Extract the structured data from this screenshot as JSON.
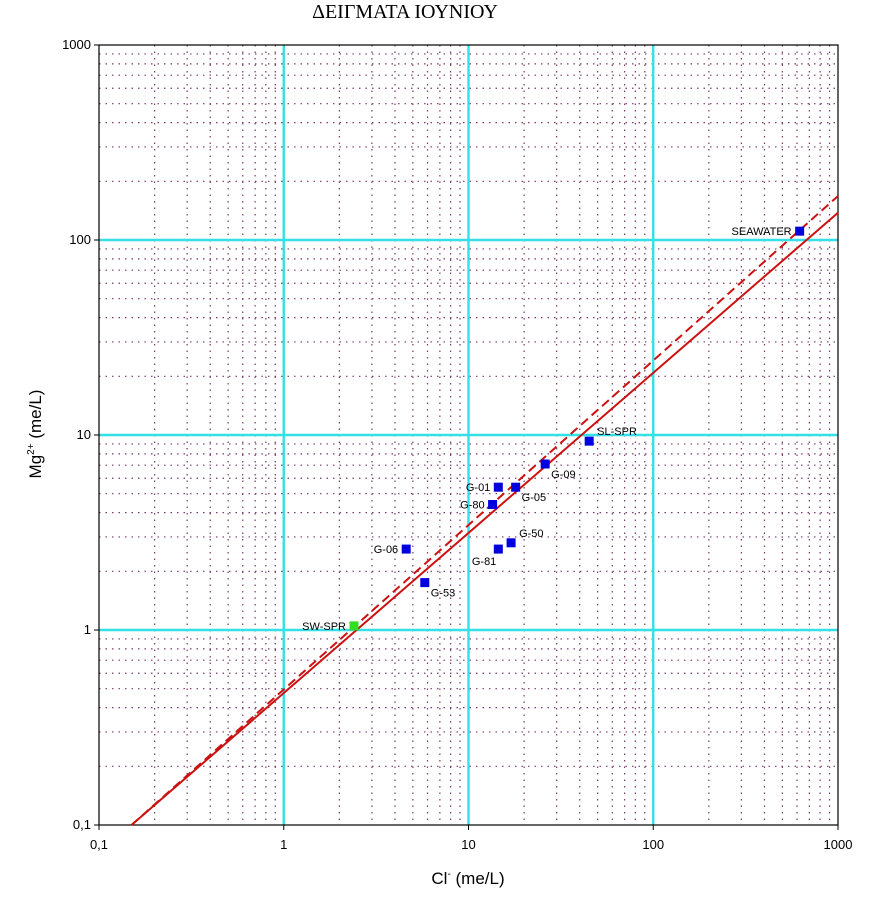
{
  "chart_data": {
    "type": "scatter",
    "title": "ΔΕΙΓΜΑΤΑ ΙΟΥΝΙΟΥ",
    "xlabel": {
      "main": "Cl",
      "sup": "-",
      "tail": " (me/L)"
    },
    "ylabel": {
      "main": "Mg",
      "sup": "2+",
      "tail": " (me/L)"
    },
    "x_scale": "log",
    "y_scale": "log",
    "xlim": [
      0.1,
      1000
    ],
    "ylim": [
      0.1,
      1000
    ],
    "x_ticks": [
      0.1,
      1,
      10,
      100,
      1000
    ],
    "x_tick_labels": [
      "0,1",
      "1",
      "10",
      "100",
      "1000"
    ],
    "y_ticks": [
      0.1,
      1,
      10,
      100,
      1000
    ],
    "y_tick_labels": [
      "0,1",
      "1",
      "10",
      "100",
      "1000"
    ],
    "grid": true,
    "major_grid_color": "#33e0e8",
    "minor_grid_color": "#7a3a6a",
    "points": [
      {
        "label": "SEAWATER",
        "x": 620,
        "y": 111,
        "color": "#0000dd",
        "label_pos": "left"
      },
      {
        "label": "SL-SPR",
        "x": 45,
        "y": 9.3,
        "color": "#0000dd",
        "label_pos": "top-right"
      },
      {
        "label": "G-09",
        "x": 26,
        "y": 7.1,
        "color": "#0000dd",
        "label_pos": "bottom-right"
      },
      {
        "label": "G-01",
        "x": 14.5,
        "y": 5.4,
        "color": "#0000dd",
        "label_pos": "left"
      },
      {
        "label": "G-05",
        "x": 18,
        "y": 5.4,
        "color": "#0000dd",
        "label_pos": "bottom-right"
      },
      {
        "label": "G-80",
        "x": 13.5,
        "y": 4.4,
        "color": "#0000dd",
        "label_pos": "left"
      },
      {
        "label": "G-50",
        "x": 17,
        "y": 2.8,
        "color": "#0000dd",
        "label_pos": "top-right"
      },
      {
        "label": "G-81",
        "x": 14.5,
        "y": 2.6,
        "color": "#0000dd",
        "label_pos": "bottom-left"
      },
      {
        "label": "G-06",
        "x": 4.6,
        "y": 2.6,
        "color": "#0000dd",
        "label_pos": "left"
      },
      {
        "label": "G-53",
        "x": 5.8,
        "y": 1.75,
        "color": "#0000dd",
        "label_pos": "bottom-right"
      },
      {
        "label": "SW-SPR",
        "x": 2.4,
        "y": 1.05,
        "color": "#33dd22",
        "label_pos": "left"
      }
    ],
    "lines": [
      {
        "style": "solid",
        "color": "#cc1111",
        "x": [
          0.15,
          1000
        ],
        "y": [
          0.1,
          138
        ]
      },
      {
        "style": "dashed",
        "color": "#cc1111",
        "x": [
          0.15,
          1000
        ],
        "y": [
          0.1,
          168
        ]
      }
    ]
  }
}
